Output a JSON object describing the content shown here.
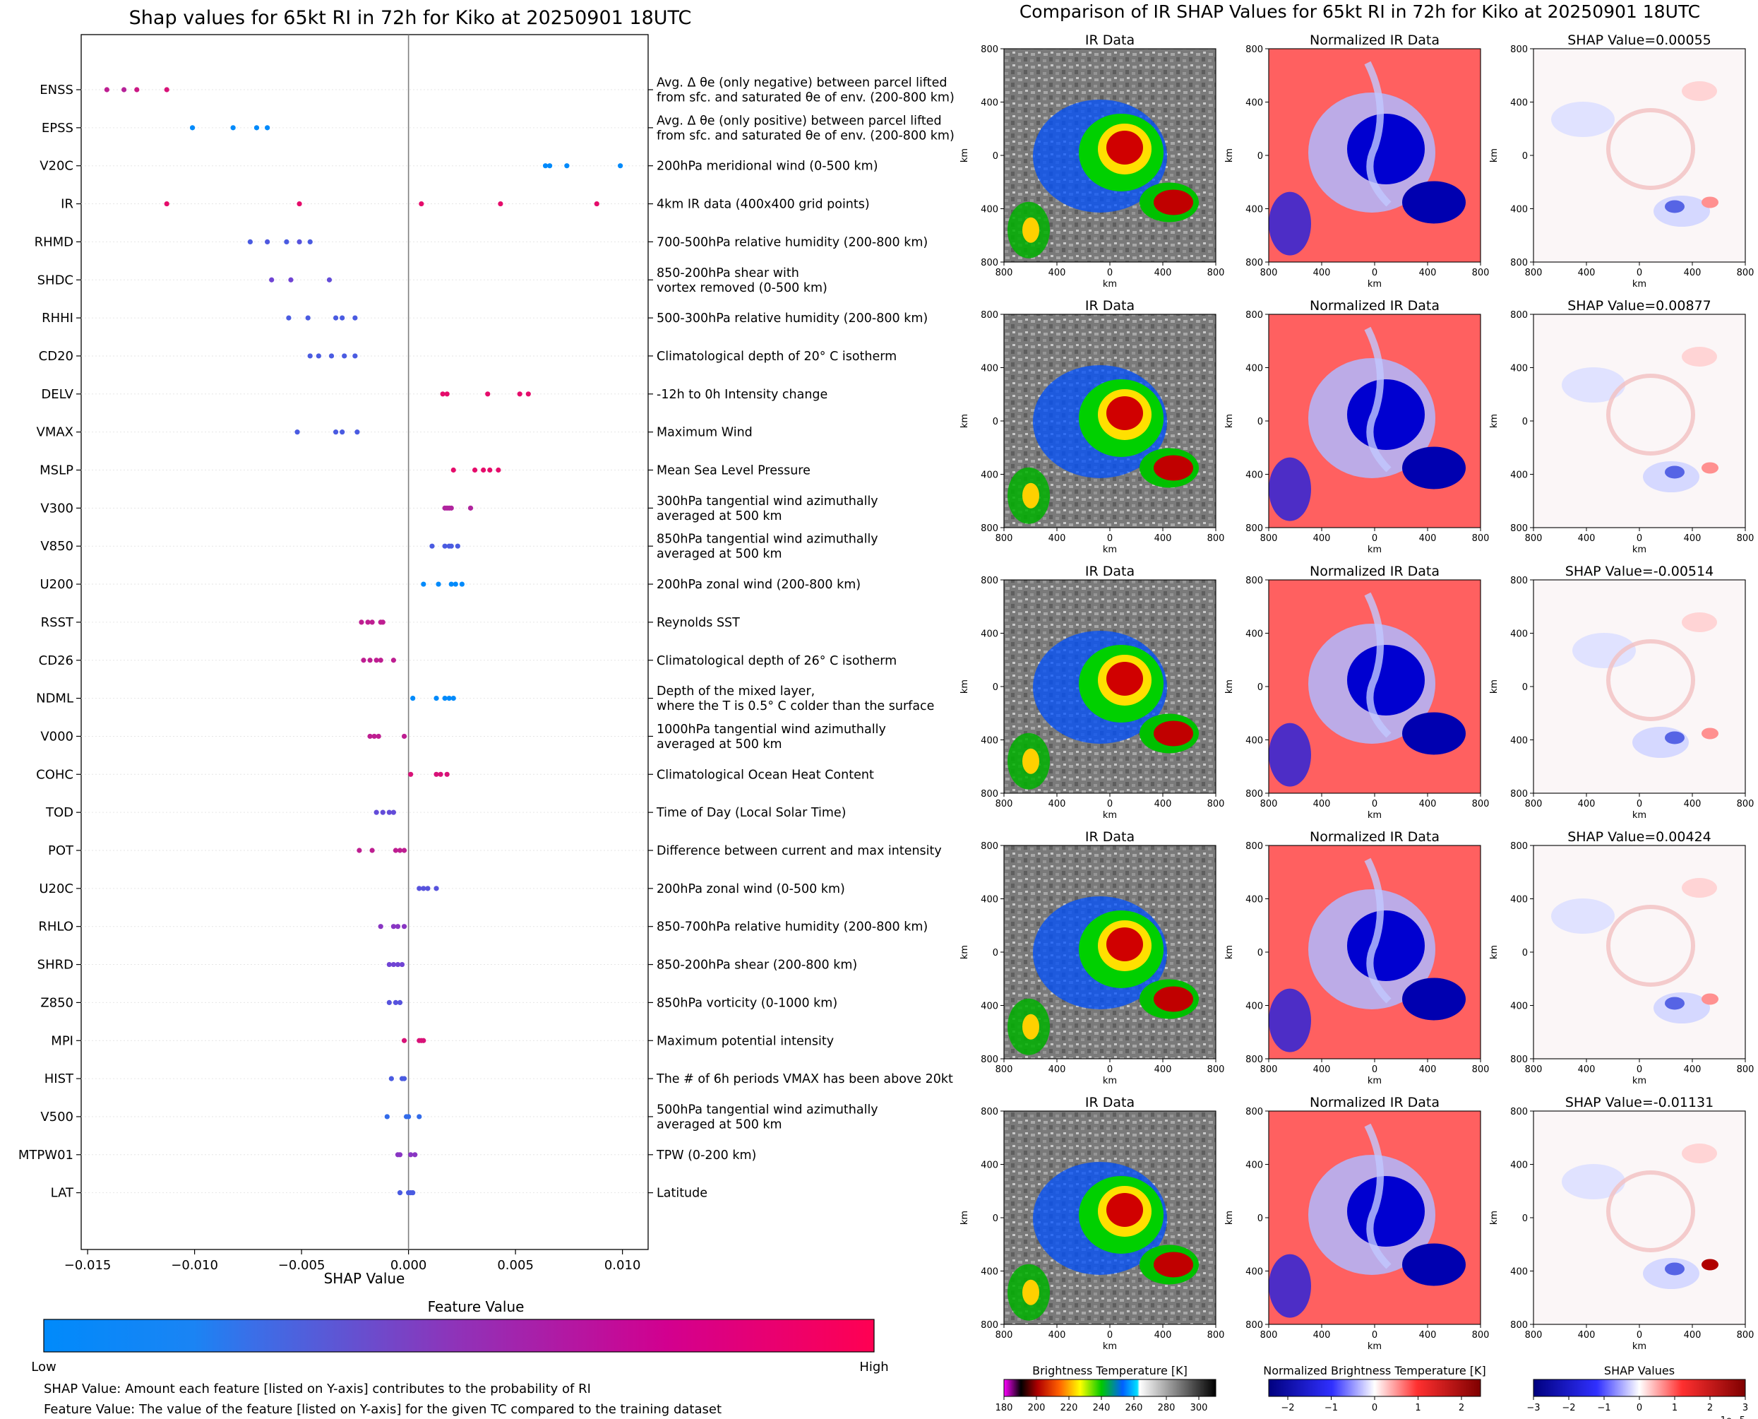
{
  "left_panel": {
    "caption_1": "SHAP Value: Amount each feature [listed on Y-axis] contributes to the probability of RI",
    "caption_2": "Feature Value: The value of the feature [listed on Y-axis] for the given TC compared to the training dataset",
    "colorbar": {
      "title": "Feature Value",
      "low_label": "Low",
      "high_label": "High",
      "low_color": "#008afb",
      "mid_color": "#7c3cd0",
      "high_color": "#ff0052"
    }
  },
  "right_panel": {
    "title": "Comparison of IR SHAP Values for 65kt RI in 72h for Kiko at 20250901 18UTC",
    "column_titles": [
      "IR Data",
      "Normalized IR Data"
    ],
    "rows": [
      {
        "shap_title": "SHAP Value=0.00055"
      },
      {
        "shap_title": "SHAP Value=0.00877"
      },
      {
        "shap_title": "SHAP Value=-0.00514"
      },
      {
        "shap_title": "SHAP Value=0.00424"
      },
      {
        "shap_title": "SHAP Value=-0.01131"
      }
    ],
    "axis_label": "km",
    "x_ticks": [
      "800",
      "400",
      "0",
      "400",
      "800"
    ],
    "y_ticks": [
      "800",
      "400",
      "0",
      "400",
      "800"
    ],
    "colorbars": [
      {
        "title": "Brightness Temperature [K]",
        "ticks": [
          "180",
          "200",
          "220",
          "240",
          "260",
          "280",
          "300"
        ]
      },
      {
        "title": "Normalized Brightness Temperature [K]",
        "ticks": [
          "−2",
          "−1",
          "0",
          "1",
          "2"
        ]
      },
      {
        "title": "SHAP Values",
        "ticks": [
          "−3",
          "−2",
          "−1",
          "0",
          "1",
          "2",
          "3"
        ],
        "offset": "1e−5"
      }
    ]
  },
  "chart_data": {
    "type": "scatter",
    "title": "Shap values for 65kt RI in 72h for Kiko at 20250901 18UTC",
    "xlabel": "SHAP Value",
    "xlim": [
      -0.0153,
      0.0112
    ],
    "x_ticks": [
      -0.015,
      -0.01,
      -0.005,
      0.0,
      0.005,
      0.01
    ],
    "x_tick_labels": [
      "−0.015",
      "−0.010",
      "−0.005",
      "0.000",
      "0.005",
      "0.010"
    ],
    "features": [
      {
        "name": "ENSS",
        "desc": [
          "Avg. Δ θe (only negative) between parcel lifted",
          "from sfc. and saturated θe of env. (200-800 km)"
        ],
        "shap": [
          -0.0141,
          -0.0133,
          -0.0127,
          -0.0113
        ],
        "fv": [
          0.75,
          0.72,
          0.8,
          0.85
        ]
      },
      {
        "name": "EPSS",
        "desc": [
          "Avg. Δ θe (only positive) between parcel lifted",
          "from sfc. and saturated θe of env. (200-800 km)"
        ],
        "shap": [
          -0.0101,
          -0.0082,
          -0.0071,
          -0.0066
        ],
        "fv": [
          0.0,
          0.0,
          0.0,
          0.0
        ]
      },
      {
        "name": "V20C",
        "desc": [
          "200hPa meridional wind (0-500 km)"
        ],
        "shap": [
          0.0064,
          0.0066,
          0.0074,
          0.0099
        ],
        "fv": [
          0.0,
          0.0,
          0.0,
          0.0
        ]
      },
      {
        "name": "IR",
        "desc": [
          "4km IR data (400x400 grid points)"
        ],
        "shap": [
          -0.0113,
          -0.0051,
          0.0006,
          0.0043,
          0.0088
        ],
        "fv": [
          0.9,
          0.9,
          0.9,
          0.9,
          0.9
        ]
      },
      {
        "name": "RHMD",
        "desc": [
          "700-500hPa relative humidity (200-800 km)"
        ],
        "shap": [
          -0.0074,
          -0.0066,
          -0.0057,
          -0.0051,
          -0.0046
        ],
        "fv": [
          0.3,
          0.32,
          0.3,
          0.35,
          0.3
        ]
      },
      {
        "name": "SHDC",
        "desc": [
          "850-200hPa shear with",
          "vortex removed (0-500 km)"
        ],
        "shap": [
          -0.0064,
          -0.0055,
          -0.0037
        ],
        "fv": [
          0.45,
          0.45,
          0.4
        ]
      },
      {
        "name": "RHHI",
        "desc": [
          "500-300hPa relative humidity (200-800 km)"
        ],
        "shap": [
          -0.0056,
          -0.0047,
          -0.0034,
          -0.0031,
          -0.0025
        ],
        "fv": [
          0.3,
          0.3,
          0.3,
          0.3,
          0.3
        ]
      },
      {
        "name": "CD20",
        "desc": [
          "Climatological depth of 20° C isotherm"
        ],
        "shap": [
          -0.0046,
          -0.0042,
          -0.0036,
          -0.003,
          -0.0025
        ],
        "fv": [
          0.3,
          0.3,
          0.3,
          0.3,
          0.3
        ]
      },
      {
        "name": "DELV",
        "desc": [
          "-12h to 0h Intensity change"
        ],
        "shap": [
          0.0016,
          0.0018,
          0.0037,
          0.0052,
          0.0056
        ],
        "fv": [
          0.9,
          0.9,
          0.9,
          0.9,
          0.9
        ]
      },
      {
        "name": "VMAX",
        "desc": [
          "Maximum Wind"
        ],
        "shap": [
          -0.0052,
          -0.0034,
          -0.0031,
          -0.0024
        ],
        "fv": [
          0.3,
          0.3,
          0.3,
          0.3
        ]
      },
      {
        "name": "MSLP",
        "desc": [
          "Mean Sea Level Pressure"
        ],
        "shap": [
          0.0021,
          0.0031,
          0.0035,
          0.0038,
          0.0042
        ],
        "fv": [
          0.9,
          0.9,
          0.9,
          0.9,
          0.9
        ]
      },
      {
        "name": "V300",
        "desc": [
          "300hPa tangential wind azimuthally",
          "averaged at 500 km"
        ],
        "shap": [
          0.0017,
          0.0018,
          0.0019,
          0.002,
          0.0029
        ],
        "fv": [
          0.7,
          0.7,
          0.7,
          0.7,
          0.7
        ]
      },
      {
        "name": "V850",
        "desc": [
          "850hPa tangential wind azimuthally",
          "averaged at 500 km"
        ],
        "shap": [
          0.0011,
          0.0017,
          0.0019,
          0.002,
          0.0023
        ],
        "fv": [
          0.3,
          0.3,
          0.3,
          0.3,
          0.3
        ]
      },
      {
        "name": "U200",
        "desc": [
          "200hPa zonal wind (200-800 km)"
        ],
        "shap": [
          0.0007,
          0.0014,
          0.002,
          0.0022,
          0.0025
        ],
        "fv": [
          0.0,
          0.0,
          0.0,
          0.0,
          0.0
        ]
      },
      {
        "name": "RSST",
        "desc": [
          "Reynolds SST"
        ],
        "shap": [
          -0.0022,
          -0.0019,
          -0.0017,
          -0.0013,
          -0.0012
        ],
        "fv": [
          0.75,
          0.75,
          0.75,
          0.75,
          0.75
        ]
      },
      {
        "name": "CD26",
        "desc": [
          "Climatological depth of 26° C isotherm"
        ],
        "shap": [
          -0.0021,
          -0.0018,
          -0.0015,
          -0.0013,
          -0.0007
        ],
        "fv": [
          0.75,
          0.75,
          0.75,
          0.75,
          0.75
        ]
      },
      {
        "name": "NDML",
        "desc": [
          "Depth of the mixed layer,",
          "where the T is 0.5° C colder than the surface"
        ],
        "shap": [
          0.0002,
          0.0013,
          0.0017,
          0.0019,
          0.0021
        ],
        "fv": [
          0.0,
          0.0,
          0.0,
          0.0,
          0.0
        ]
      },
      {
        "name": "V000",
        "desc": [
          "1000hPa tangential wind azimuthally",
          "averaged at 500 km"
        ],
        "shap": [
          -0.0018,
          -0.0016,
          -0.0014,
          -0.0002
        ],
        "fv": [
          0.75,
          0.75,
          0.75,
          0.75
        ]
      },
      {
        "name": "COHC",
        "desc": [
          "Climatological Ocean Heat Content"
        ],
        "shap": [
          0.0001,
          0.0013,
          0.0015,
          0.0018
        ],
        "fv": [
          0.85,
          0.85,
          0.85,
          0.85
        ]
      },
      {
        "name": "TOD",
        "desc": [
          "Time of Day (Local Solar Time)"
        ],
        "shap": [
          -0.0015,
          -0.0012,
          -0.0009,
          -0.0007
        ],
        "fv": [
          0.4,
          0.4,
          0.4,
          0.4
        ]
      },
      {
        "name": "POT",
        "desc": [
          "Difference between current and max intensity"
        ],
        "shap": [
          -0.0023,
          -0.0017,
          -0.0006,
          -0.0004,
          -0.0002
        ],
        "fv": [
          0.75,
          0.75,
          0.75,
          0.75,
          0.75
        ]
      },
      {
        "name": "U20C",
        "desc": [
          "200hPa zonal wind (0-500 km)"
        ],
        "shap": [
          0.0005,
          0.0007,
          0.0009,
          0.0013
        ],
        "fv": [
          0.35,
          0.35,
          0.35,
          0.35
        ]
      },
      {
        "name": "RHLO",
        "desc": [
          "850-700hPa relative humidity (200-800 km)"
        ],
        "shap": [
          -0.0013,
          -0.0007,
          -0.0005,
          -0.0002
        ],
        "fv": [
          0.55,
          0.55,
          0.55,
          0.55
        ]
      },
      {
        "name": "SHRD",
        "desc": [
          "850-200hPa shear (200-800 km)"
        ],
        "shap": [
          -0.0009,
          -0.0007,
          -0.0005,
          -0.0003
        ],
        "fv": [
          0.45,
          0.45,
          0.45,
          0.45
        ]
      },
      {
        "name": "Z850",
        "desc": [
          "850hPa vorticity (0-1000 km)"
        ],
        "shap": [
          -0.0009,
          -0.0006,
          -0.0004
        ],
        "fv": [
          0.35,
          0.35,
          0.35
        ]
      },
      {
        "name": "MPI",
        "desc": [
          "Maximum potential intensity"
        ],
        "shap": [
          -0.0002,
          0.0005,
          0.0006,
          0.0007
        ],
        "fv": [
          0.85,
          0.85,
          0.85,
          0.85
        ]
      },
      {
        "name": "HIST",
        "desc": [
          "The # of 6h periods VMAX has been above 20kt"
        ],
        "shap": [
          -0.0008,
          -0.0003,
          -0.0002
        ],
        "fv": [
          0.3,
          0.3,
          0.3
        ]
      },
      {
        "name": "V500",
        "desc": [
          "500hPa tangential wind azimuthally",
          "averaged at 500 km"
        ],
        "shap": [
          -0.001,
          -0.0001,
          0.0,
          0.0005
        ],
        "fv": [
          0.2,
          0.2,
          0.2,
          0.2
        ]
      },
      {
        "name": "MTPW01",
        "desc": [
          "TPW (0-200 km)"
        ],
        "shap": [
          -0.0005,
          -0.0004,
          0.0001,
          0.0003
        ],
        "fv": [
          0.55,
          0.55,
          0.55,
          0.55
        ]
      },
      {
        "name": "LAT",
        "desc": [
          "Latitude"
        ],
        "shap": [
          -0.0004,
          0.0,
          0.0001,
          0.0002
        ],
        "fv": [
          0.3,
          0.3,
          0.3,
          0.3
        ]
      }
    ]
  }
}
